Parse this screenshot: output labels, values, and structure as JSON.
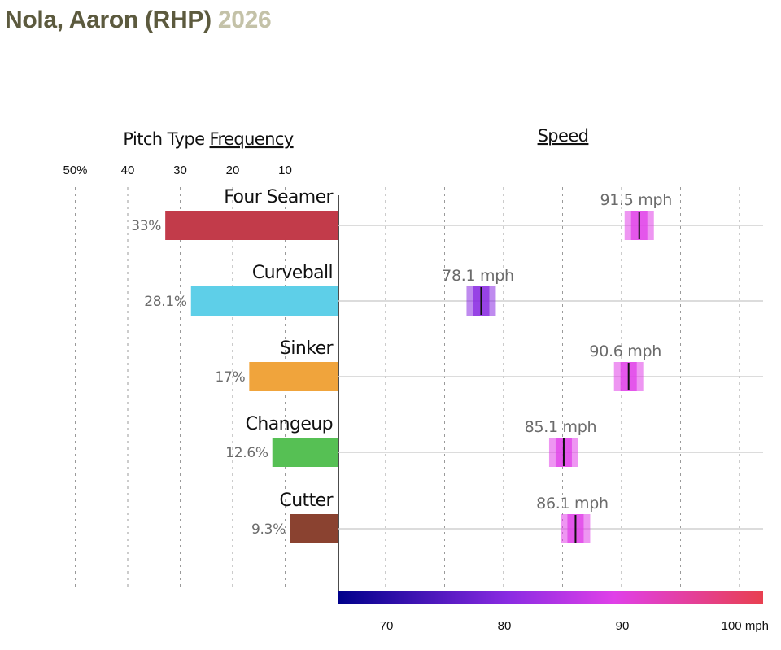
{
  "title": {
    "name": "Nola, Aaron (RHP)",
    "year": "2026"
  },
  "chart_data": {
    "type": "bar",
    "headers": {
      "frequency_prefix": "Pitch Type",
      "frequency_underlined": "Frequency",
      "speed": "Speed"
    },
    "frequency_ticks": [
      "50%",
      "40",
      "30",
      "20",
      "10"
    ],
    "frequency_tick_values": [
      50,
      40,
      30,
      20,
      10
    ],
    "frequency_max": 50,
    "speed_ticks": [
      "70",
      "80",
      "90",
      "100 mph"
    ],
    "speed_tick_values": [
      70,
      80,
      90,
      100
    ],
    "speed_range": [
      66,
      102
    ],
    "speed_grid": [
      70,
      75,
      80,
      85,
      90,
      95,
      100
    ],
    "color_scale": [
      "#00008b",
      "#8a2be2",
      "#e040e8",
      "#e84050"
    ],
    "pitches": [
      {
        "name": "Four Seamer",
        "frequency": 33.0,
        "frequency_label": "33%",
        "speed": 91.5,
        "speed_label": "91.5 mph",
        "color": "#c23b4a"
      },
      {
        "name": "Curveball",
        "frequency": 28.1,
        "frequency_label": "28.1%",
        "speed": 78.1,
        "speed_label": "78.1 mph",
        "color": "#5ecfe8"
      },
      {
        "name": "Sinker",
        "frequency": 17.0,
        "frequency_label": "17%",
        "speed": 90.6,
        "speed_label": "90.6 mph",
        "color": "#f0a43c"
      },
      {
        "name": "Changeup",
        "frequency": 12.6,
        "frequency_label": "12.6%",
        "speed": 85.1,
        "speed_label": "85.1 mph",
        "color": "#56c054"
      },
      {
        "name": "Cutter",
        "frequency": 9.3,
        "frequency_label": "9.3%",
        "speed": 86.1,
        "speed_label": "86.1 mph",
        "color": "#8a4230"
      }
    ]
  }
}
